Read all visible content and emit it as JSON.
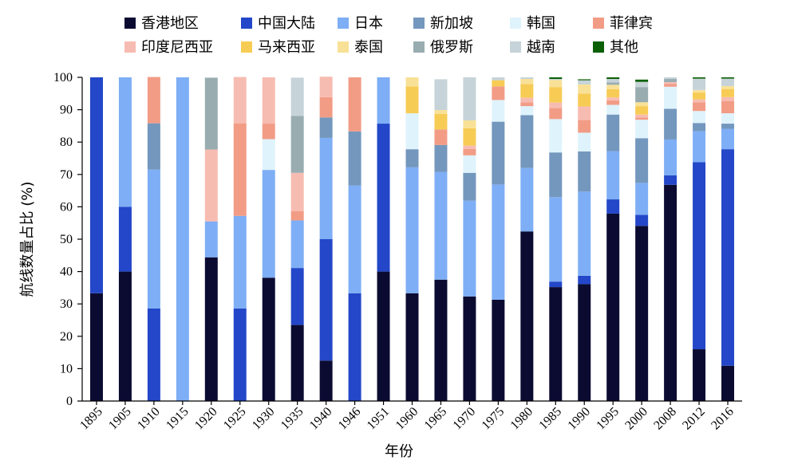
{
  "chart_data": {
    "type": "bar",
    "stacked": true,
    "xlabel": "年份",
    "ylabel": "航线数量占比 (%)",
    "ylim": [
      0,
      100
    ],
    "yticks": [
      0,
      10,
      20,
      30,
      40,
      50,
      60,
      70,
      80,
      90,
      100
    ],
    "grid": false,
    "legend_position": "top",
    "categories": [
      "1895",
      "1905",
      "1910",
      "1915",
      "1920",
      "1925",
      "1930",
      "1935",
      "1940",
      "1946",
      "1951",
      "1960",
      "1965",
      "1970",
      "1975",
      "1980",
      "1985",
      "1990",
      "1995",
      "2000",
      "2008",
      "2012",
      "2016"
    ],
    "series": [
      {
        "name": "香港地区",
        "color": "#0b0b32",
        "values": [
          33.3,
          40.0,
          0,
          0,
          44.4,
          0,
          38.1,
          23.5,
          12.5,
          0,
          40.0,
          33.3,
          37.5,
          32.3,
          31.3,
          52.4,
          35.2,
          36.1,
          57.9,
          54.1,
          66.8,
          16.0,
          10.9
        ]
      },
      {
        "name": "中国大陆",
        "color": "#2347c8",
        "values": [
          66.7,
          20.0,
          28.6,
          0,
          0,
          28.6,
          0,
          17.6,
          37.5,
          33.3,
          45.7,
          0,
          0,
          0,
          0,
          0,
          1.7,
          2.6,
          4.4,
          3.4,
          2.9,
          57.8,
          66.9
        ]
      },
      {
        "name": "日本",
        "color": "#7eaef5",
        "values": [
          0,
          40.0,
          42.9,
          100.0,
          11.1,
          28.6,
          33.3,
          14.7,
          31.3,
          33.3,
          14.3,
          38.9,
          33.3,
          29.6,
          35.6,
          19.6,
          26.1,
          26.0,
          14.9,
          9.9,
          11.1,
          9.6,
          6.3
        ]
      },
      {
        "name": "新加坡",
        "color": "#7497bd",
        "values": [
          0,
          0,
          14.3,
          0,
          0,
          0,
          0,
          0,
          6.3,
          16.7,
          0,
          5.6,
          8.3,
          8.6,
          19.4,
          16.3,
          13.8,
          12.4,
          11.3,
          13.8,
          9.5,
          2.5,
          1.6
        ]
      },
      {
        "name": "韩国",
        "color": "#dff3fc",
        "values": [
          0,
          0,
          0,
          0,
          0,
          0,
          9.5,
          0,
          0,
          0,
          0,
          11.1,
          0,
          5.4,
          6.7,
          2.8,
          10.3,
          5.8,
          3.0,
          5.7,
          6.8,
          3.7,
          3.2
        ]
      },
      {
        "name": "菲律宾",
        "color": "#f29c86",
        "values": [
          0,
          0,
          14.3,
          0,
          0,
          28.6,
          4.8,
          2.9,
          6.3,
          16.7,
          0,
          0,
          4.8,
          2.0,
          4.2,
          1.2,
          3.4,
          3.9,
          1.4,
          0.7,
          0.9,
          2.7,
          3.8
        ]
      },
      {
        "name": "印度尼西亚",
        "color": "#f7bcb1",
        "values": [
          0,
          0,
          0,
          0,
          22.2,
          14.3,
          14.3,
          11.8,
          6.3,
          0,
          0,
          0,
          0,
          1.0,
          0,
          1.4,
          1.7,
          4.2,
          0.9,
          0.9,
          0.5,
          0.9,
          1.2
        ]
      },
      {
        "name": "马来西亚",
        "color": "#f7cc55",
        "values": [
          0,
          0,
          0,
          0,
          0,
          0,
          0,
          0,
          0,
          0,
          0,
          8.3,
          4.8,
          5.4,
          1.9,
          4.2,
          4.8,
          4.0,
          2.5,
          2.6,
          0,
          2.1,
          2.5
        ]
      },
      {
        "name": "泰国",
        "color": "#f8e197",
        "values": [
          0,
          0,
          0,
          0,
          0,
          0,
          0,
          0,
          0,
          0,
          0,
          2.8,
          1.2,
          2.4,
          0,
          1.6,
          2.2,
          2.8,
          1.4,
          1.2,
          0,
          0.8,
          0.9
        ]
      },
      {
        "name": "俄罗斯",
        "color": "#99adb1",
        "values": [
          0,
          0,
          0,
          0,
          22.2,
          0,
          0,
          17.6,
          0,
          0,
          0,
          0,
          0,
          0,
          0,
          0,
          0,
          0,
          0.7,
          4.7,
          1.0,
          0,
          0
        ]
      },
      {
        "name": "越南",
        "color": "#c6d3d8",
        "values": [
          0,
          0,
          0,
          0,
          0,
          0,
          0,
          11.8,
          0,
          0,
          0,
          0,
          9.5,
          13.3,
          0.9,
          0.5,
          0.3,
          1.3,
          1.1,
          1.6,
          0.5,
          3.5,
          2.3
        ]
      },
      {
        "name": "其他",
        "color": "#0b6005",
        "values": [
          0,
          0,
          0,
          0,
          0,
          0,
          0,
          0,
          0,
          0,
          0,
          0,
          0,
          0,
          0,
          0,
          0.5,
          0.3,
          0.5,
          0.7,
          0,
          0.4,
          0.4
        ]
      }
    ]
  }
}
